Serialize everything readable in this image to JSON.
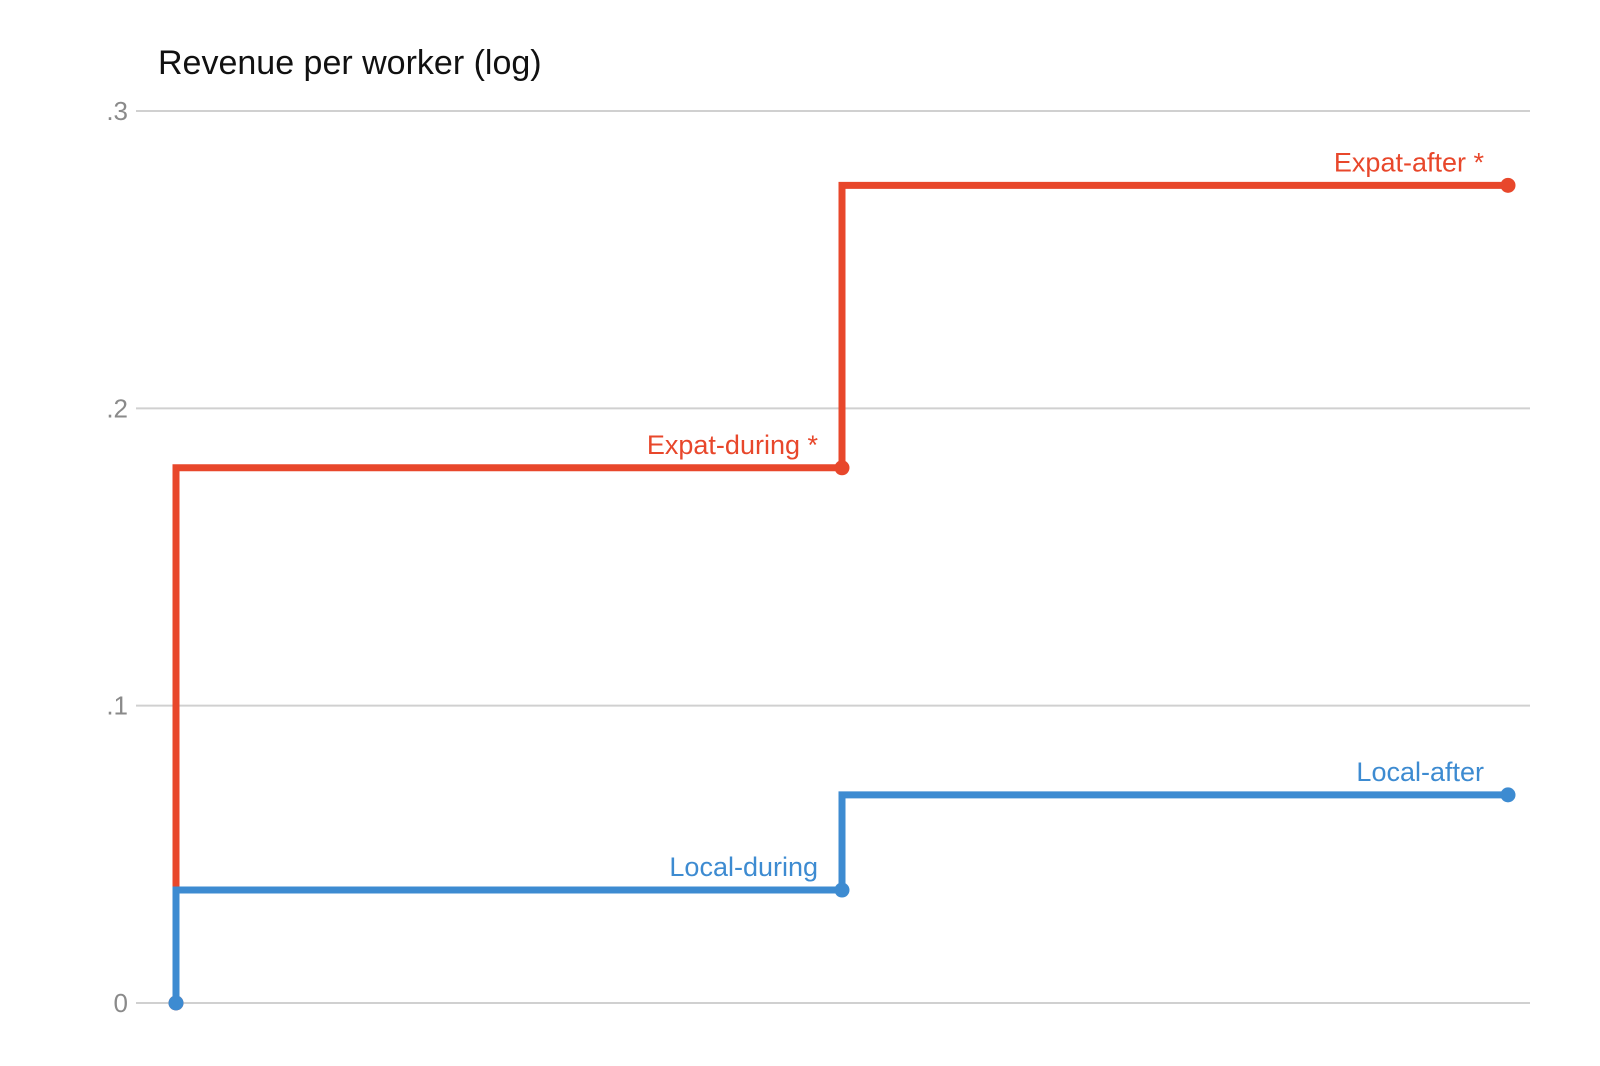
{
  "chart_data": {
    "type": "line",
    "title": "Revenue per worker (log)",
    "xlabel": "",
    "ylabel": "",
    "ylim": [
      0,
      0.3
    ],
    "y_ticks": [
      {
        "value": 0,
        "label": "0"
      },
      {
        "value": 0.1,
        "label": ".1"
      },
      {
        "value": 0.2,
        "label": ".2"
      },
      {
        "value": 0.3,
        "label": ".3"
      }
    ],
    "x_positions": [
      0,
      1,
      2
    ],
    "grid": true,
    "step": true,
    "series": [
      {
        "key": "expat",
        "color": "#e8472b",
        "values": [
          0,
          0.18,
          0.275
        ],
        "point_labels": [
          "",
          "Expat-during *",
          "Expat-after *"
        ]
      },
      {
        "key": "local",
        "color": "#3d8bd1",
        "values": [
          0,
          0.038,
          0.07
        ],
        "point_labels": [
          "",
          "Local-during",
          "Local-after"
        ]
      }
    ]
  }
}
